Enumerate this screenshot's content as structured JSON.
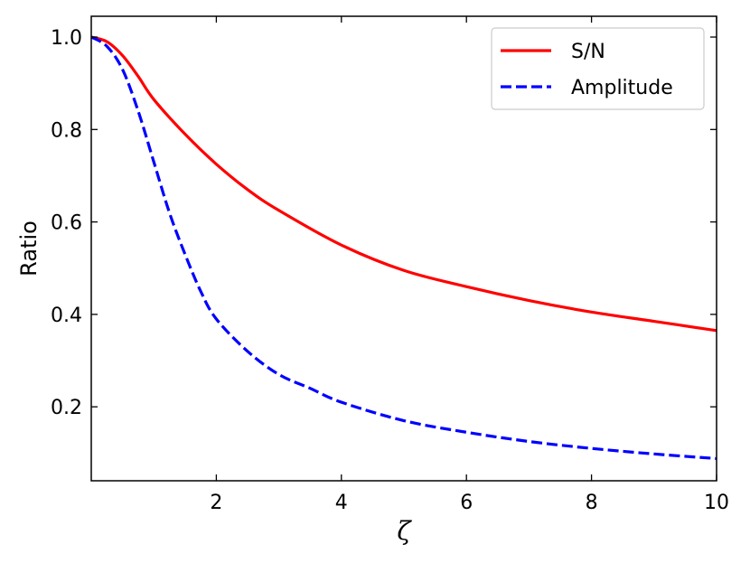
{
  "chart_data": {
    "type": "line",
    "title": "",
    "xlabel": "ζ",
    "ylabel": "Ratio",
    "xlim": [
      0,
      10
    ],
    "ylim": [
      0.04,
      1.045
    ],
    "x_ticks": [
      2,
      4,
      6,
      8,
      10
    ],
    "x_tick_labels": [
      "2",
      "4",
      "6",
      "8",
      "10"
    ],
    "y_ticks": [
      0.2,
      0.4,
      0.6,
      0.8,
      1.0
    ],
    "y_tick_labels": [
      "0.2",
      "0.4",
      "0.6",
      "0.8",
      "1.0"
    ],
    "grid": false,
    "legend_position": "top-right",
    "series": [
      {
        "name": "S/N",
        "color": "#ff0000",
        "dash": "solid",
        "x": [
          0,
          0.25,
          0.5,
          0.75,
          1,
          1.5,
          2,
          2.5,
          3,
          4,
          5,
          6,
          7,
          8,
          9,
          10
        ],
        "y": [
          1.0,
          0.99,
          0.96,
          0.915,
          0.865,
          0.79,
          0.725,
          0.67,
          0.625,
          0.55,
          0.495,
          0.46,
          0.43,
          0.405,
          0.385,
          0.365
        ]
      },
      {
        "name": "Amplitude",
        "color": "#0000ff",
        "dash": "dashed",
        "x": [
          0,
          0.25,
          0.5,
          0.75,
          1,
          1.25,
          1.5,
          1.75,
          2,
          2.5,
          3,
          3.5,
          4,
          5,
          6,
          7,
          8,
          9,
          10
        ],
        "y": [
          1.0,
          0.98,
          0.93,
          0.84,
          0.73,
          0.62,
          0.53,
          0.45,
          0.39,
          0.32,
          0.27,
          0.24,
          0.21,
          0.17,
          0.145,
          0.125,
          0.11,
          0.098,
          0.088
        ]
      }
    ]
  }
}
